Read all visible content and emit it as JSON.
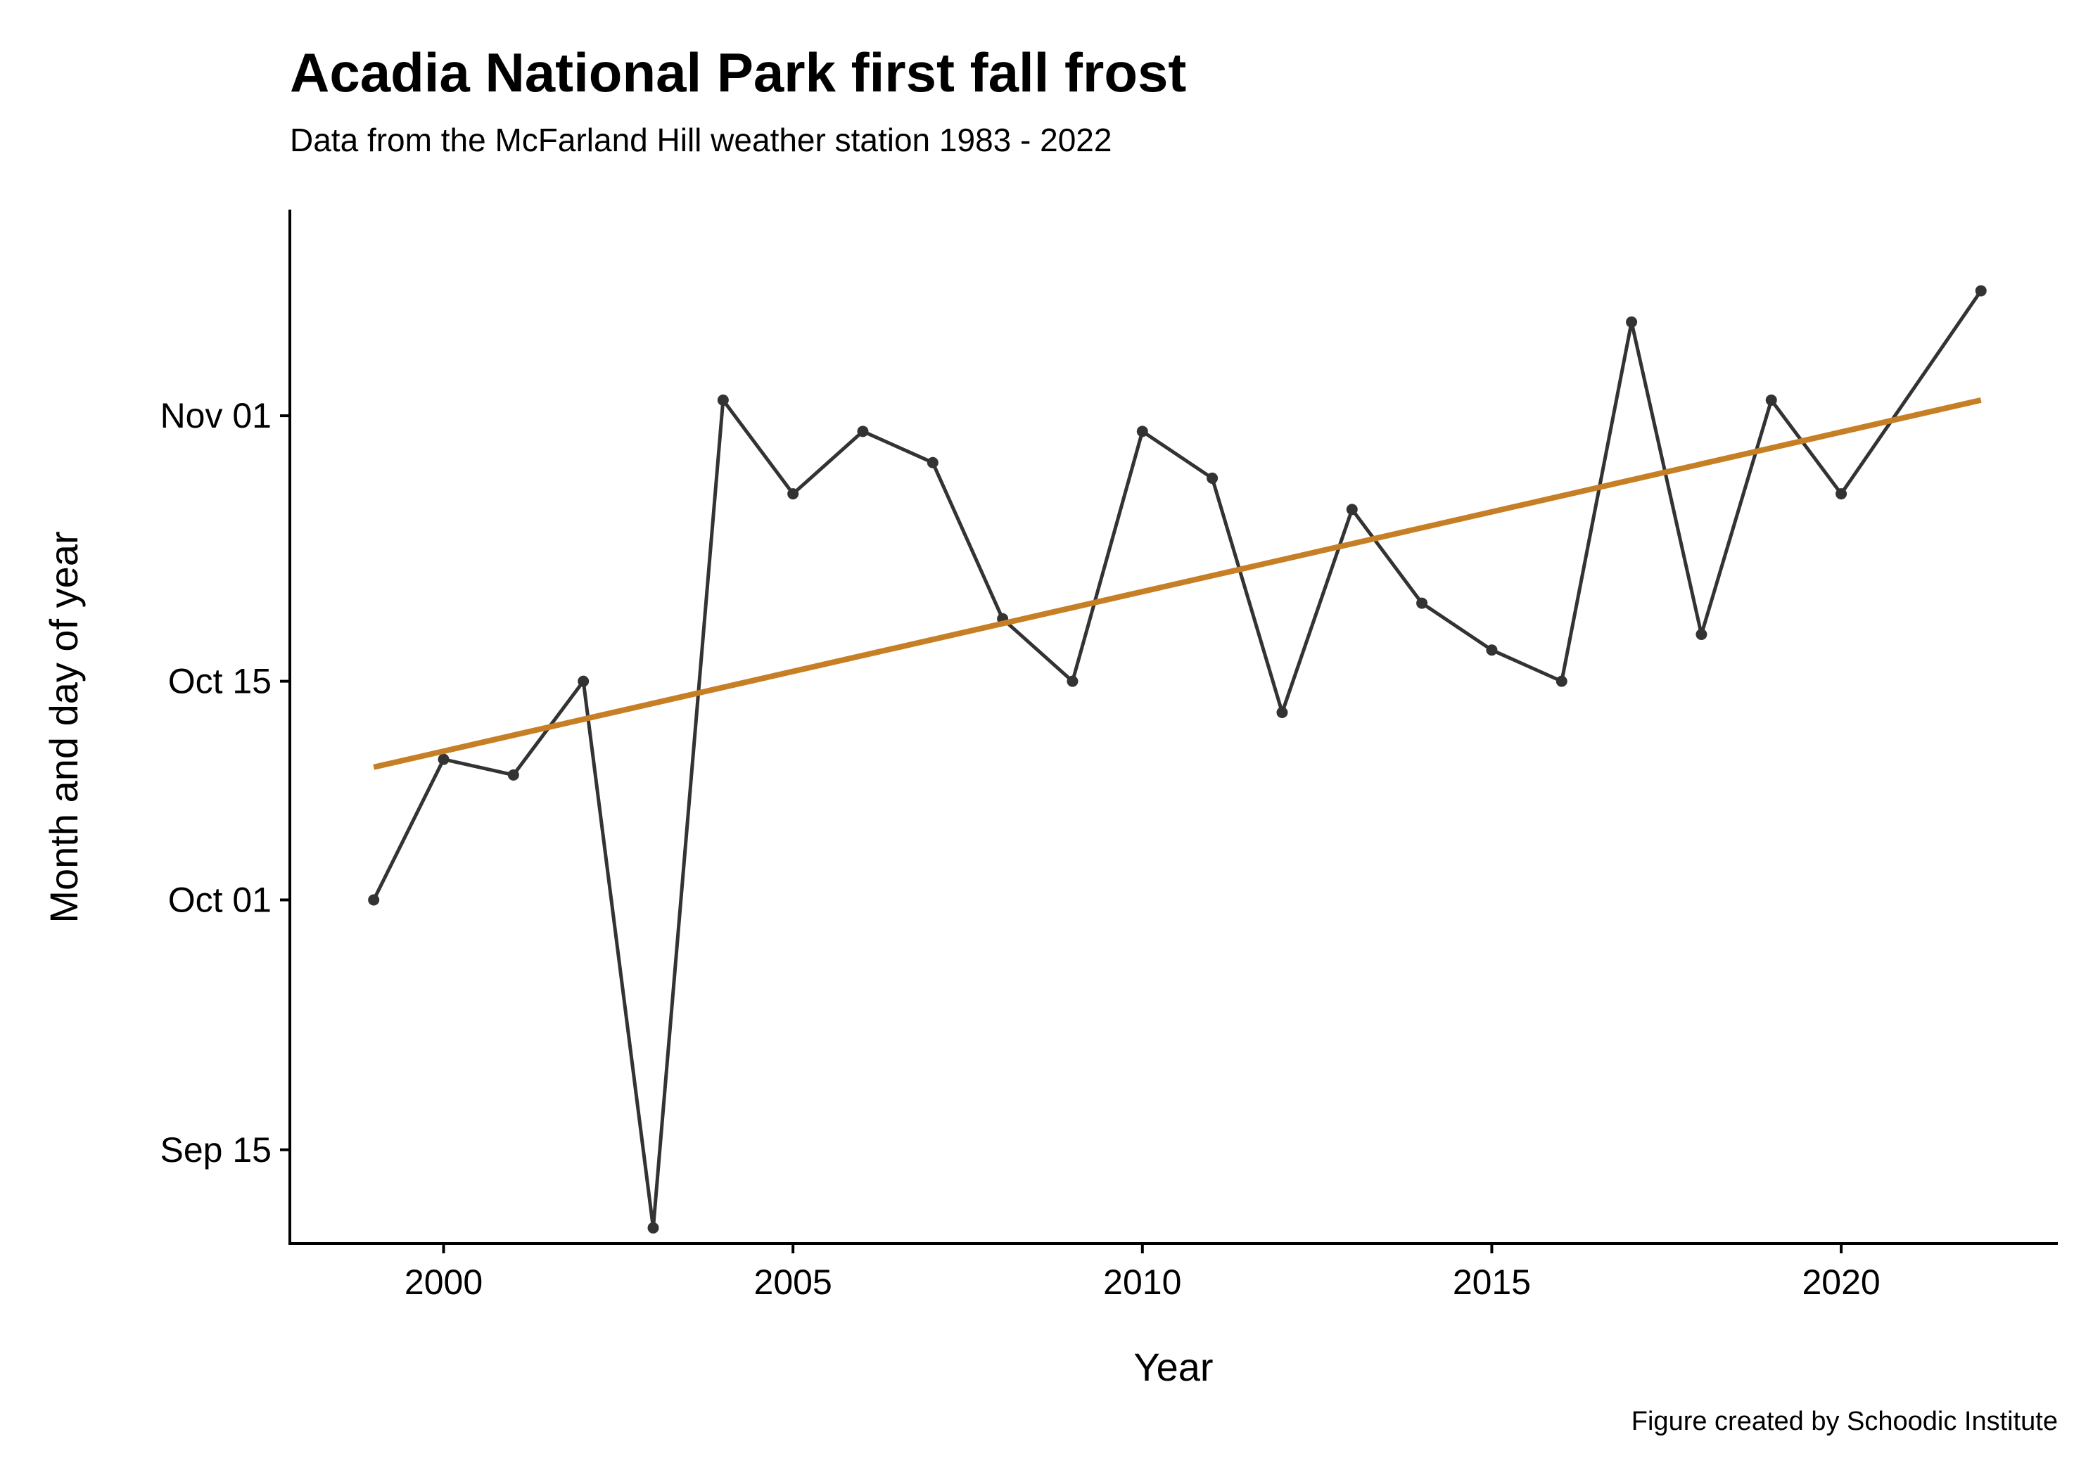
{
  "chart_data": {
    "type": "line",
    "title": "Acadia National Park first fall frost",
    "subtitle": "Data from the McFarland Hill weather station 1983 - 2022",
    "xlabel": "Year",
    "ylabel": "Month and day of year",
    "caption": "Figure created by Schoodic Institute",
    "xlim": [
      1997.8,
      2023.1
    ],
    "ylim": [
      252,
      318.2
    ],
    "x_ticks": [
      {
        "value": 2000,
        "label": "2000"
      },
      {
        "value": 2005,
        "label": "2005"
      },
      {
        "value": 2010,
        "label": "2010"
      },
      {
        "value": 2015,
        "label": "2015"
      },
      {
        "value": 2020,
        "label": "2020"
      }
    ],
    "y_ticks": [
      {
        "value": 258,
        "label": "Sep 15"
      },
      {
        "value": 274,
        "label": "Oct 01"
      },
      {
        "value": 288,
        "label": "Oct 15"
      },
      {
        "value": 305,
        "label": "Nov 01"
      }
    ],
    "grid": false,
    "series": [
      {
        "color": "#333333",
        "x": [
          1999,
          2000,
          2001,
          2002,
          2003,
          2004,
          2005,
          2006,
          2007,
          2008,
          2009,
          2010,
          2011,
          2012,
          2013,
          2014,
          2015,
          2016,
          2017,
          2018,
          2019,
          2020,
          2021,
          2022
        ],
        "values": [
          274,
          283,
          282,
          288,
          253,
          306,
          300,
          304,
          302,
          292,
          288,
          304,
          301,
          286,
          299,
          293,
          290,
          288,
          311,
          291,
          306,
          300,
          null,
          313
        ]
      }
    ],
    "trend_line": {
      "color": "#C77F26",
      "x": [
        1999,
        2022
      ],
      "values": [
        282.5,
        306
      ]
    }
  }
}
